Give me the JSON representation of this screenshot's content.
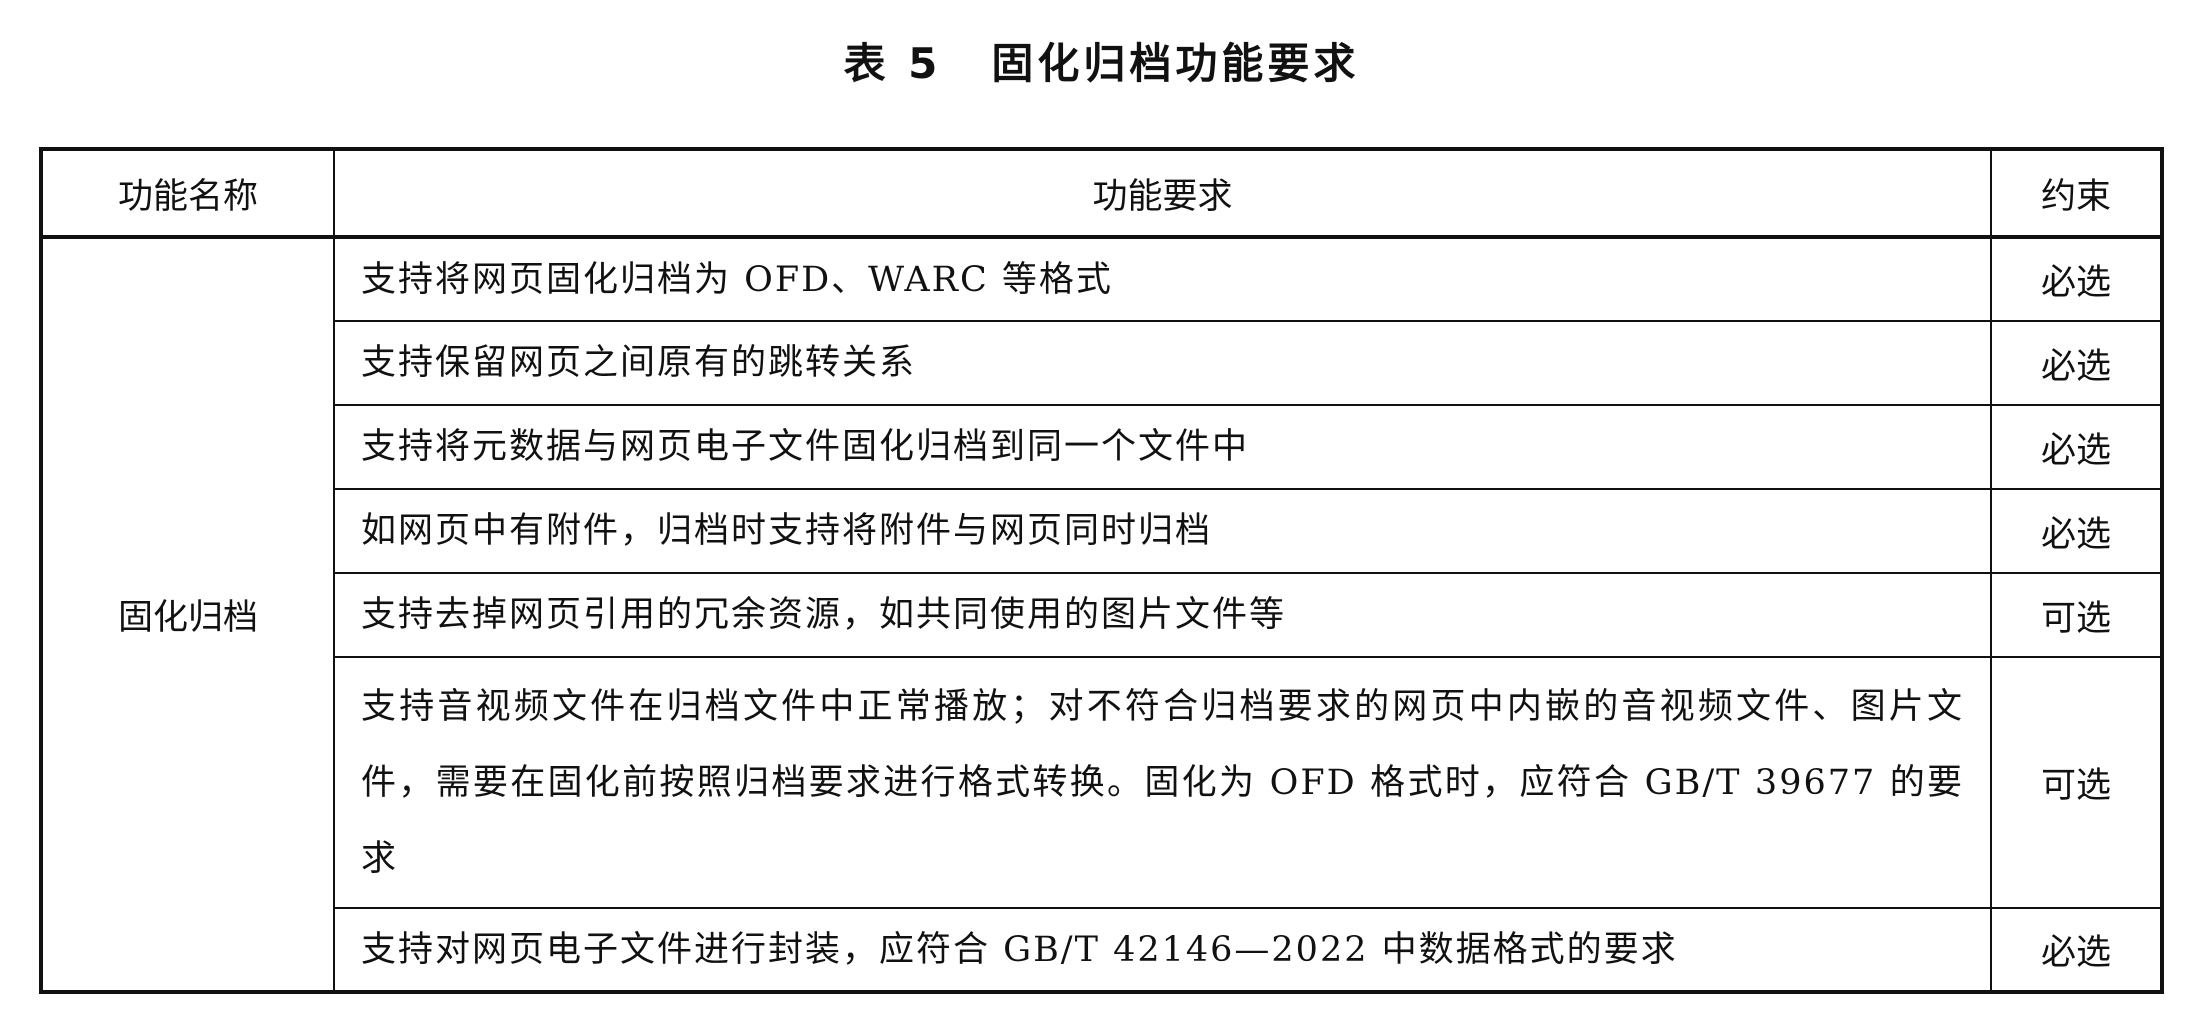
{
  "title": {
    "number": "表 5",
    "text": "固化归档功能要求"
  },
  "table": {
    "headers": [
      "功能名称",
      "功能要求",
      "约束"
    ],
    "group_name": "固化归档",
    "rows": [
      {
        "requirement": "支持将网页固化归档为 OFD、WARC 等格式",
        "constraint": "必选"
      },
      {
        "requirement": "支持保留网页之间原有的跳转关系",
        "constraint": "必选"
      },
      {
        "requirement": "支持将元数据与网页电子文件固化归档到同一个文件中",
        "constraint": "必选"
      },
      {
        "requirement": "如网页中有附件，归档时支持将附件与网页同时归档",
        "constraint": "必选"
      },
      {
        "requirement": "支持去掉网页引用的冗余资源，如共同使用的图片文件等",
        "constraint": "可选"
      },
      {
        "requirement": "支持音视频文件在归档文件中正常播放；对不符合归档要求的网页中内嵌的音视频文件、图片文件，需要在固化前按照归档要求进行格式转换。固化为 OFD 格式时，应符合 GB/T 39677 的要求",
        "constraint": "可选"
      },
      {
        "requirement": "支持对网页电子文件进行封装，应符合 GB/T 42146—2022 中数据格式的要求",
        "constraint": "必选"
      }
    ]
  }
}
